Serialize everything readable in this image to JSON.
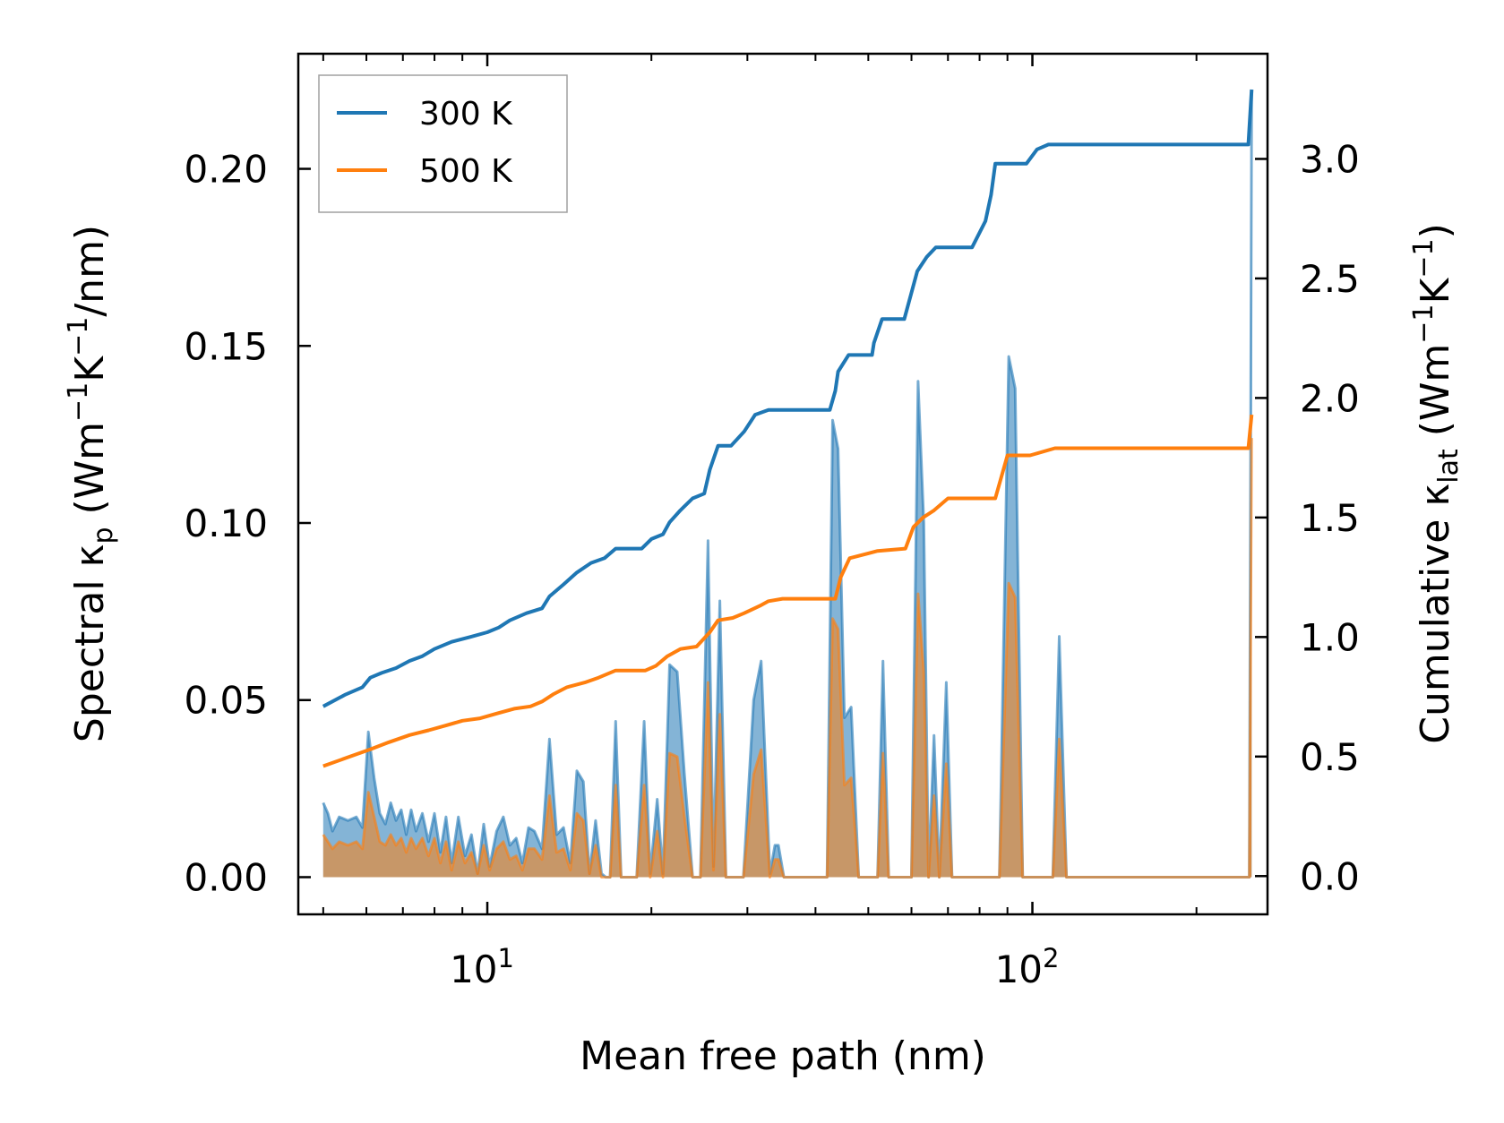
{
  "chart_data": {
    "type": "line",
    "xscale": "log",
    "xlim": [
      4.5,
      270
    ],
    "xlabel": "Mean free path (nm)",
    "xticks": [
      {
        "value": 10,
        "base": "10",
        "exp": "1"
      },
      {
        "value": 100,
        "base": "10",
        "exp": "2"
      }
    ],
    "left_axis": {
      "label_prefix": "Spectral κ",
      "label_sub": "p",
      "label_unit_a": " (Wm",
      "label_sup_a": "−1",
      "label_unit_b": "K",
      "label_sup_b": "−1",
      "label_unit_c": "/nm)",
      "ylim": [
        -0.0105,
        0.2325
      ],
      "ticks": [
        {
          "value": 0.0,
          "label": "0.00"
        },
        {
          "value": 0.05,
          "label": "0.05"
        },
        {
          "value": 0.1,
          "label": "0.10"
        },
        {
          "value": 0.15,
          "label": "0.15"
        },
        {
          "value": 0.2,
          "label": "0.20"
        }
      ]
    },
    "right_axis": {
      "label_prefix": "Cumulative κ",
      "label_sub": "lat",
      "label_unit_a": " (Wm",
      "label_sup_a": "−1",
      "label_unit_b": "K",
      "label_sup_b": "−1",
      "label_unit_c": ")",
      "ylim": [
        -0.16,
        3.44
      ],
      "ticks": [
        {
          "value": 0.0,
          "label": "0.0"
        },
        {
          "value": 0.5,
          "label": "0.5"
        },
        {
          "value": 1.0,
          "label": "1.0"
        },
        {
          "value": 1.5,
          "label": "1.5"
        },
        {
          "value": 2.0,
          "label": "2.0"
        },
        {
          "value": 2.5,
          "label": "2.5"
        },
        {
          "value": 3.0,
          "label": "3.0"
        }
      ]
    },
    "legend": {
      "position": "top-left",
      "entries": [
        "300 K",
        "500 K"
      ]
    },
    "colors": {
      "s300": "#1f77b4",
      "s500": "#ff7f0e"
    },
    "spectral": {
      "s300": [
        [
          5,
          0.021
        ],
        [
          5.1,
          0.018
        ],
        [
          5.2,
          0.013
        ],
        [
          5.35,
          0.017
        ],
        [
          5.55,
          0.016
        ],
        [
          5.75,
          0.017
        ],
        [
          5.9,
          0.014
        ],
        [
          6.05,
          0.041
        ],
        [
          6.2,
          0.028
        ],
        [
          6.35,
          0.018
        ],
        [
          6.5,
          0.015
        ],
        [
          6.65,
          0.021
        ],
        [
          6.8,
          0.016
        ],
        [
          6.95,
          0.019
        ],
        [
          7.1,
          0.012
        ],
        [
          7.25,
          0.019
        ],
        [
          7.4,
          0.013
        ],
        [
          7.6,
          0.018
        ],
        [
          7.8,
          0.01
        ],
        [
          8.0,
          0.018
        ],
        [
          8.2,
          0.007
        ],
        [
          8.4,
          0.017
        ],
        [
          8.6,
          0.004
        ],
        [
          8.85,
          0.017
        ],
        [
          9.1,
          0.006
        ],
        [
          9.35,
          0.012
        ],
        [
          9.6,
          0.001
        ],
        [
          9.85,
          0.015
        ],
        [
          10.1,
          0.003
        ],
        [
          10.4,
          0.013
        ],
        [
          10.7,
          0.017
        ],
        [
          11.0,
          0.009
        ],
        [
          11.3,
          0.011
        ],
        [
          11.6,
          0.004
        ],
        [
          11.9,
          0.014
        ],
        [
          12.2,
          0.013
        ],
        [
          12.6,
          0.008
        ],
        [
          13.0,
          0.039
        ],
        [
          13.4,
          0.012
        ],
        [
          13.8,
          0.014
        ],
        [
          14.2,
          0.004
        ],
        [
          14.6,
          0.03
        ],
        [
          15.0,
          0.027
        ],
        [
          15.4,
          0.001
        ],
        [
          15.8,
          0.016
        ],
        [
          16.2,
          0.001
        ],
        [
          16.5,
          0.0
        ],
        [
          16.8,
          0.0
        ],
        [
          17.2,
          0.044
        ],
        [
          17.6,
          0.0
        ],
        [
          18.8,
          0.0
        ],
        [
          19.4,
          0.044
        ],
        [
          19.9,
          0.001
        ],
        [
          20.5,
          0.022
        ],
        [
          21.0,
          0.001
        ],
        [
          21.6,
          0.06
        ],
        [
          22.3,
          0.058
        ],
        [
          23.0,
          0.029
        ],
        [
          23.8,
          0.0
        ],
        [
          24.6,
          0.0
        ],
        [
          25.4,
          0.095
        ],
        [
          26.0,
          0.003
        ],
        [
          26.7,
          0.078
        ],
        [
          27.4,
          0.0
        ],
        [
          29.5,
          0.0
        ],
        [
          30.8,
          0.05
        ],
        [
          31.8,
          0.061
        ],
        [
          33.0,
          0.001
        ],
        [
          33.7,
          0.009
        ],
        [
          34.2,
          0.009
        ],
        [
          35.0,
          0.0
        ],
        [
          42.0,
          0.0
        ],
        [
          43.0,
          0.129
        ],
        [
          44.0,
          0.121
        ],
        [
          45.2,
          0.045
        ],
        [
          46.5,
          0.048
        ],
        [
          48.0,
          0.0
        ],
        [
          52.0,
          0.0
        ],
        [
          53.2,
          0.061
        ],
        [
          54.5,
          0.0
        ],
        [
          60.0,
          0.0
        ],
        [
          61.7,
          0.14
        ],
        [
          63.2,
          0.1
        ],
        [
          64.5,
          0.0
        ],
        [
          66.0,
          0.04
        ],
        [
          67.5,
          0.0
        ],
        [
          69.5,
          0.055
        ],
        [
          71.2,
          0.0
        ],
        [
          87.0,
          0.0
        ],
        [
          90.5,
          0.147
        ],
        [
          93.0,
          0.138
        ],
        [
          96.0,
          0.0
        ],
        [
          109.0,
          0.0
        ],
        [
          112.0,
          0.068
        ],
        [
          115.5,
          0.0
        ],
        [
          250.0,
          0.0
        ],
        [
          252.5,
          0.222
        ]
      ],
      "s500": [
        [
          5,
          0.012
        ],
        [
          5.1,
          0.01
        ],
        [
          5.2,
          0.008
        ],
        [
          5.35,
          0.01
        ],
        [
          5.55,
          0.009
        ],
        [
          5.75,
          0.01
        ],
        [
          5.9,
          0.008
        ],
        [
          6.05,
          0.024
        ],
        [
          6.2,
          0.017
        ],
        [
          6.35,
          0.01
        ],
        [
          6.5,
          0.009
        ],
        [
          6.65,
          0.012
        ],
        [
          6.8,
          0.009
        ],
        [
          6.95,
          0.011
        ],
        [
          7.1,
          0.007
        ],
        [
          7.25,
          0.011
        ],
        [
          7.4,
          0.008
        ],
        [
          7.6,
          0.011
        ],
        [
          7.8,
          0.006
        ],
        [
          8.0,
          0.011
        ],
        [
          8.2,
          0.004
        ],
        [
          8.4,
          0.01
        ],
        [
          8.6,
          0.002
        ],
        [
          8.85,
          0.01
        ],
        [
          9.1,
          0.004
        ],
        [
          9.35,
          0.007
        ],
        [
          9.6,
          0.001
        ],
        [
          9.85,
          0.009
        ],
        [
          10.1,
          0.002
        ],
        [
          10.4,
          0.008
        ],
        [
          10.7,
          0.01
        ],
        [
          11.0,
          0.005
        ],
        [
          11.3,
          0.006
        ],
        [
          11.6,
          0.002
        ],
        [
          11.9,
          0.008
        ],
        [
          12.2,
          0.008
        ],
        [
          12.6,
          0.005
        ],
        [
          13.0,
          0.023
        ],
        [
          13.4,
          0.007
        ],
        [
          13.8,
          0.008
        ],
        [
          14.2,
          0.002
        ],
        [
          14.6,
          0.018
        ],
        [
          15.0,
          0.016
        ],
        [
          15.4,
          0.001
        ],
        [
          15.8,
          0.009
        ],
        [
          16.2,
          0.0
        ],
        [
          16.5,
          0.0
        ],
        [
          16.8,
          0.0
        ],
        [
          17.2,
          0.026
        ],
        [
          17.6,
          0.0
        ],
        [
          18.8,
          0.0
        ],
        [
          19.4,
          0.026
        ],
        [
          19.9,
          0.0
        ],
        [
          20.5,
          0.013
        ],
        [
          21.0,
          0.0
        ],
        [
          21.6,
          0.035
        ],
        [
          22.3,
          0.034
        ],
        [
          23.0,
          0.017
        ],
        [
          23.8,
          0.0
        ],
        [
          24.6,
          0.0
        ],
        [
          25.4,
          0.055
        ],
        [
          26.0,
          0.002
        ],
        [
          26.7,
          0.046
        ],
        [
          27.4,
          0.0
        ],
        [
          29.5,
          0.0
        ],
        [
          30.8,
          0.029
        ],
        [
          31.8,
          0.036
        ],
        [
          33.0,
          0.0
        ],
        [
          33.7,
          0.005
        ],
        [
          34.2,
          0.005
        ],
        [
          35.0,
          0.0
        ],
        [
          42.0,
          0.0
        ],
        [
          43.0,
          0.073
        ],
        [
          44.0,
          0.07
        ],
        [
          45.2,
          0.026
        ],
        [
          46.5,
          0.028
        ],
        [
          48.0,
          0.0
        ],
        [
          52.0,
          0.0
        ],
        [
          53.2,
          0.035
        ],
        [
          54.5,
          0.0
        ],
        [
          60.0,
          0.0
        ],
        [
          61.7,
          0.08
        ],
        [
          63.2,
          0.058
        ],
        [
          64.5,
          0.0
        ],
        [
          66.0,
          0.023
        ],
        [
          67.5,
          0.0
        ],
        [
          69.5,
          0.032
        ],
        [
          71.2,
          0.0
        ],
        [
          87.0,
          0.0
        ],
        [
          90.5,
          0.083
        ],
        [
          93.0,
          0.079
        ],
        [
          96.0,
          0.0
        ],
        [
          109.0,
          0.0
        ],
        [
          112.0,
          0.039
        ],
        [
          115.5,
          0.0
        ],
        [
          250.0,
          0.0
        ],
        [
          252.5,
          0.124
        ]
      ]
    },
    "cumulative": {
      "s300": [
        [
          5,
          0.71
        ],
        [
          5.5,
          0.76
        ],
        [
          5.9,
          0.79
        ],
        [
          6.1,
          0.83
        ],
        [
          6.4,
          0.85
        ],
        [
          6.8,
          0.87
        ],
        [
          7.2,
          0.9
        ],
        [
          7.6,
          0.92
        ],
        [
          8.0,
          0.95
        ],
        [
          8.6,
          0.98
        ],
        [
          9.3,
          1.0
        ],
        [
          10.0,
          1.02
        ],
        [
          10.5,
          1.04
        ],
        [
          11.0,
          1.07
        ],
        [
          11.8,
          1.1
        ],
        [
          12.6,
          1.12
        ],
        [
          13.0,
          1.17
        ],
        [
          13.8,
          1.22
        ],
        [
          14.6,
          1.27
        ],
        [
          15.5,
          1.31
        ],
        [
          16.4,
          1.33
        ],
        [
          17.2,
          1.37
        ],
        [
          19.2,
          1.37
        ],
        [
          20.0,
          1.41
        ],
        [
          21.0,
          1.43
        ],
        [
          21.6,
          1.48
        ],
        [
          22.6,
          1.53
        ],
        [
          23.8,
          1.58
        ],
        [
          25.0,
          1.6
        ],
        [
          25.6,
          1.7
        ],
        [
          26.5,
          1.8
        ],
        [
          28.0,
          1.8
        ],
        [
          29.6,
          1.86
        ],
        [
          31.0,
          1.93
        ],
        [
          32.8,
          1.95
        ],
        [
          42.5,
          1.95
        ],
        [
          43.5,
          2.03
        ],
        [
          44.0,
          2.11
        ],
        [
          46.0,
          2.18
        ],
        [
          50.8,
          2.18
        ],
        [
          51.2,
          2.23
        ],
        [
          53.0,
          2.33
        ],
        [
          58.2,
          2.33
        ],
        [
          60.0,
          2.44
        ],
        [
          61.5,
          2.53
        ],
        [
          64.0,
          2.59
        ],
        [
          66.5,
          2.63
        ],
        [
          77.5,
          2.63
        ],
        [
          82.0,
          2.74
        ],
        [
          84.0,
          2.85
        ],
        [
          85.5,
          2.98
        ],
        [
          97.5,
          2.98
        ],
        [
          102.0,
          3.04
        ],
        [
          107.0,
          3.06
        ],
        [
          249.0,
          3.06
        ],
        [
          252.5,
          3.29
        ]
      ],
      "s500": [
        [
          5,
          0.46
        ],
        [
          5.6,
          0.5
        ],
        [
          6.1,
          0.53
        ],
        [
          6.6,
          0.56
        ],
        [
          7.2,
          0.59
        ],
        [
          7.8,
          0.61
        ],
        [
          8.4,
          0.63
        ],
        [
          9.0,
          0.65
        ],
        [
          9.7,
          0.66
        ],
        [
          10.4,
          0.68
        ],
        [
          11.2,
          0.7
        ],
        [
          12.0,
          0.71
        ],
        [
          12.6,
          0.73
        ],
        [
          13.2,
          0.76
        ],
        [
          14.0,
          0.79
        ],
        [
          15.1,
          0.81
        ],
        [
          16.0,
          0.83
        ],
        [
          17.2,
          0.86
        ],
        [
          19.5,
          0.86
        ],
        [
          20.4,
          0.88
        ],
        [
          21.4,
          0.92
        ],
        [
          22.6,
          0.95
        ],
        [
          24.2,
          0.96
        ],
        [
          25.6,
          1.02
        ],
        [
          26.5,
          1.07
        ],
        [
          28.2,
          1.08
        ],
        [
          29.6,
          1.1
        ],
        [
          31.6,
          1.13
        ],
        [
          32.8,
          1.15
        ],
        [
          34.8,
          1.16
        ],
        [
          43.5,
          1.16
        ],
        [
          44.5,
          1.25
        ],
        [
          46.2,
          1.33
        ],
        [
          50.0,
          1.35
        ],
        [
          52.0,
          1.36
        ],
        [
          58.5,
          1.37
        ],
        [
          60.5,
          1.46
        ],
        [
          63.0,
          1.5
        ],
        [
          66.0,
          1.53
        ],
        [
          70.0,
          1.58
        ],
        [
          85.5,
          1.58
        ],
        [
          90.0,
          1.76
        ],
        [
          99.0,
          1.76
        ],
        [
          110.0,
          1.79
        ],
        [
          249.0,
          1.79
        ],
        [
          252.5,
          1.93
        ]
      ]
    }
  }
}
